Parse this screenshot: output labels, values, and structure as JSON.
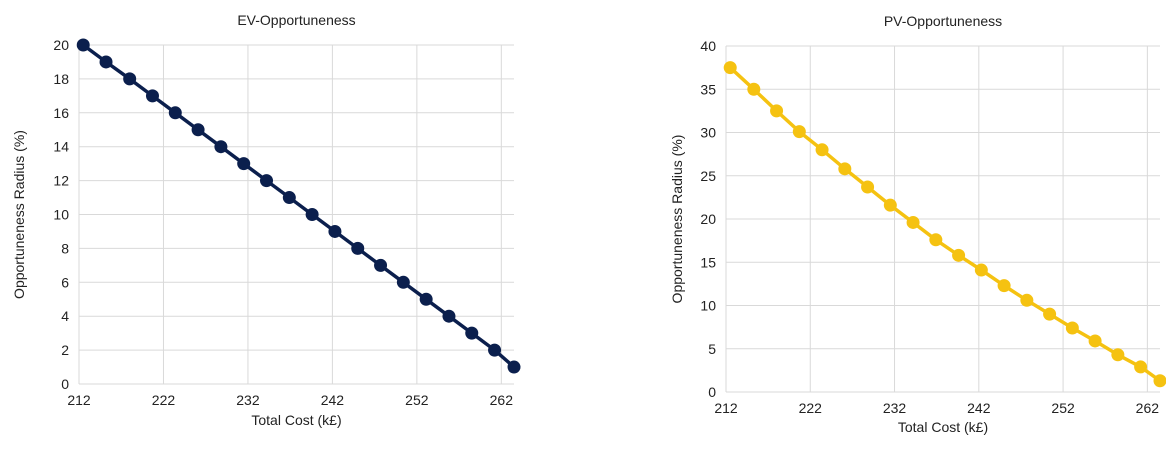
{
  "chart_data": [
    {
      "type": "line",
      "title": "EV-Opportuneness",
      "xlabel": "Total Cost (k£)",
      "ylabel": "Opportuneness Radius (%)",
      "xlim": [
        212,
        263.5
      ],
      "ylim": [
        0,
        20
      ],
      "xticks": [
        "212",
        "222",
        "232",
        "242",
        "252",
        "262"
      ],
      "yticks": [
        "0",
        "2",
        "4",
        "6",
        "8",
        "10",
        "12",
        "14",
        "16",
        "18",
        "20"
      ],
      "grid": true,
      "color": "#0b1f4d",
      "series": [
        {
          "x": [
            212.5,
            215.2,
            218.0,
            220.7,
            223.4,
            226.1,
            228.8,
            231.5,
            234.2,
            236.9,
            239.6,
            242.3,
            245.0,
            247.7,
            250.4,
            253.1,
            255.8,
            258.5,
            261.2,
            263.5
          ],
          "y": [
            20,
            19,
            18,
            17,
            16,
            15,
            14,
            13,
            12,
            11,
            10,
            9,
            8,
            7,
            6,
            5,
            4,
            3,
            2,
            1
          ]
        }
      ]
    },
    {
      "type": "line",
      "title": "PV-Opportuneness",
      "xlabel": "Total Cost (k£)",
      "ylabel": "Opportuneness Radius (%)",
      "xlim": [
        212,
        263.5
      ],
      "ylim": [
        0,
        40
      ],
      "xticks": [
        "212",
        "222",
        "232",
        "242",
        "252",
        "262"
      ],
      "yticks": [
        "0",
        "5",
        "10",
        "15",
        "20",
        "25",
        "30",
        "35",
        "40"
      ],
      "grid": true,
      "color": "#f5c211",
      "series": [
        {
          "x": [
            212.5,
            215.3,
            218.0,
            220.7,
            223.4,
            226.1,
            228.8,
            231.5,
            234.2,
            236.9,
            239.6,
            242.3,
            245.0,
            247.7,
            250.4,
            253.1,
            255.8,
            258.5,
            261.2,
            263.5
          ],
          "y": [
            37.5,
            35.0,
            32.5,
            30.1,
            28.0,
            25.8,
            23.7,
            21.6,
            19.6,
            17.6,
            15.8,
            14.1,
            12.3,
            10.6,
            9.0,
            7.4,
            5.9,
            4.3,
            2.9,
            1.3
          ]
        }
      ]
    }
  ]
}
